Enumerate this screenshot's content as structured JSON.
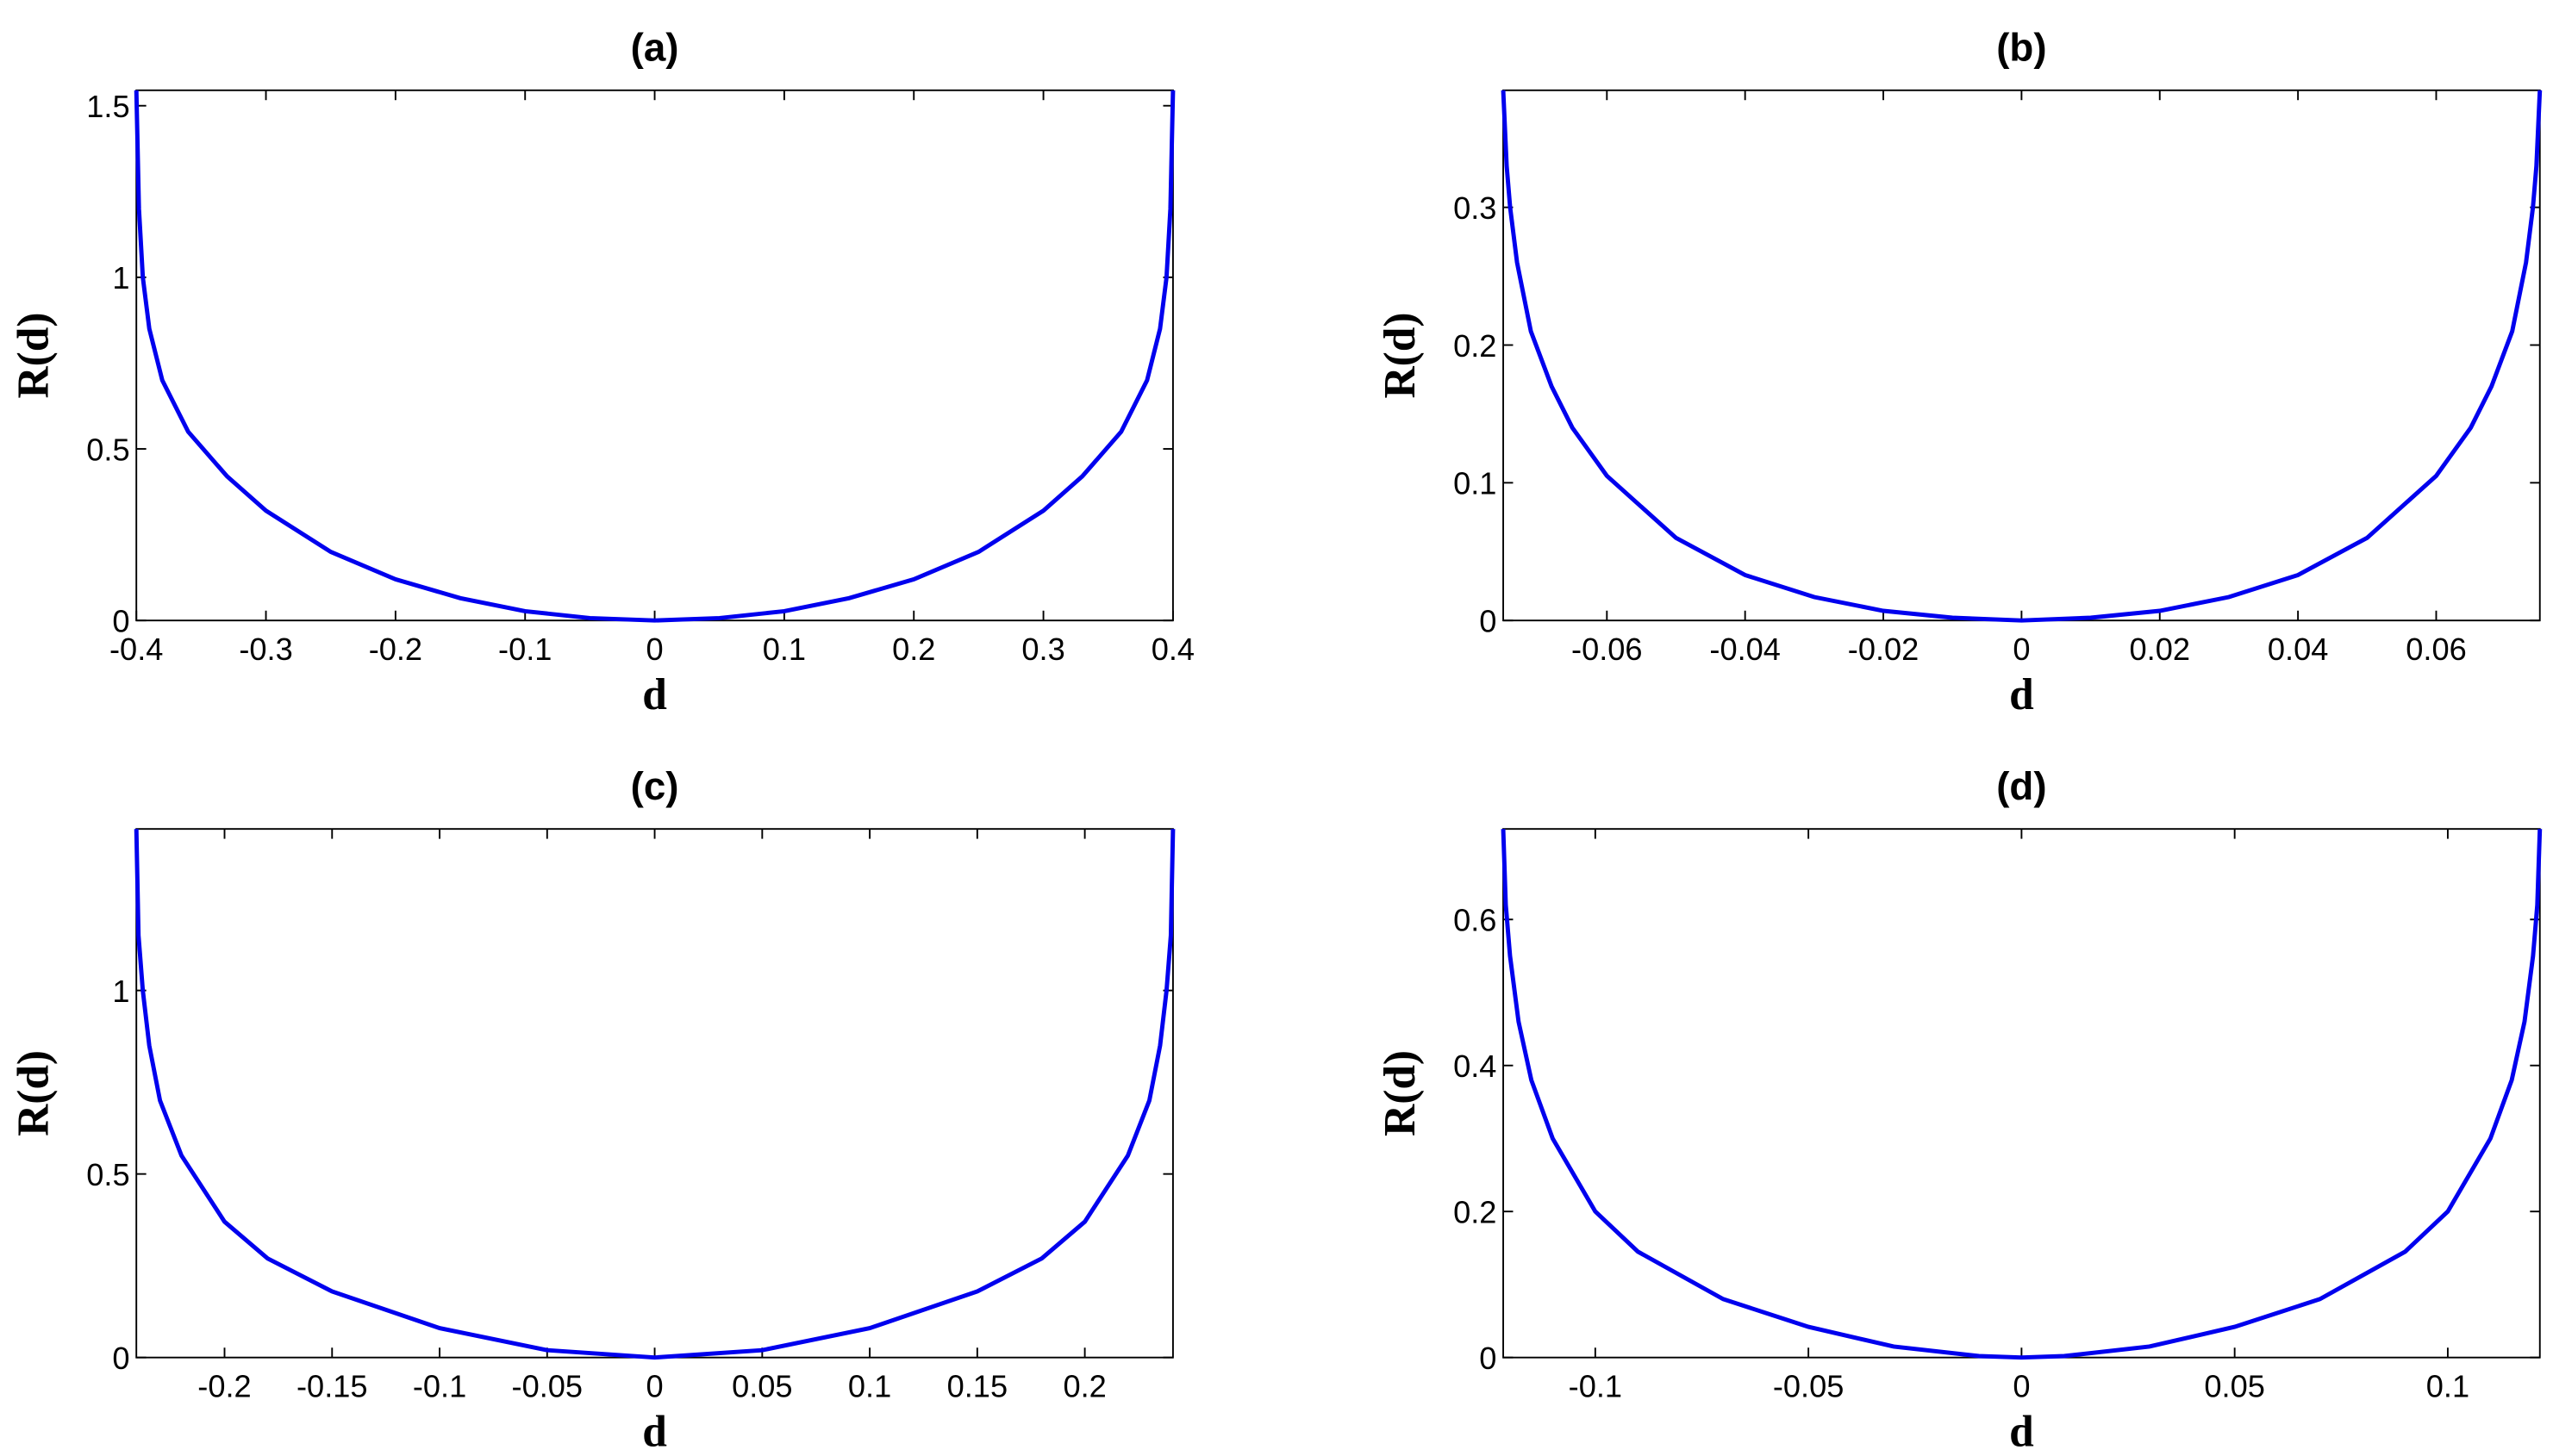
{
  "chart_data": [
    {
      "type": "line",
      "title": "(a)",
      "xlabel": "d",
      "ylabel": "R(d)",
      "color": "#0000ee",
      "x": [
        -0.4,
        -0.398,
        -0.395,
        -0.39,
        -0.38,
        -0.36,
        -0.33,
        -0.3,
        -0.25,
        -0.2,
        -0.15,
        -0.1,
        -0.05,
        0,
        0.05,
        0.1,
        0.15,
        0.2,
        0.25,
        0.3,
        0.33,
        0.36,
        0.38,
        0.39,
        0.395,
        0.398,
        0.4
      ],
      "values": [
        1.545,
        1.2,
        1.0,
        0.85,
        0.7,
        0.55,
        0.42,
        0.32,
        0.2,
        0.12,
        0.065,
        0.027,
        0.007,
        0,
        0.007,
        0.027,
        0.065,
        0.12,
        0.2,
        0.32,
        0.42,
        0.55,
        0.7,
        0.85,
        1.0,
        1.2,
        1.545
      ],
      "xlim": [
        -0.4,
        0.4
      ],
      "ylim": [
        0,
        1.545
      ],
      "xticks": [
        -0.4,
        -0.3,
        -0.2,
        -0.1,
        0,
        0.1,
        0.2,
        0.3,
        0.4
      ],
      "yticks": [
        0,
        0.5,
        1,
        1.5
      ]
    },
    {
      "type": "line",
      "title": "(b)",
      "xlabel": "d",
      "ylabel": "R(d)",
      "color": "#0000ee",
      "x": [
        -0.075,
        -0.0745,
        -0.074,
        -0.073,
        -0.071,
        -0.068,
        -0.065,
        -0.06,
        -0.05,
        -0.04,
        -0.03,
        -0.02,
        -0.01,
        0,
        0.01,
        0.02,
        0.03,
        0.04,
        0.05,
        0.06,
        0.065,
        0.068,
        0.071,
        0.073,
        0.074,
        0.0745,
        0.075
      ],
      "values": [
        0.385,
        0.33,
        0.3,
        0.26,
        0.21,
        0.17,
        0.14,
        0.105,
        0.06,
        0.033,
        0.017,
        0.007,
        0.002,
        0,
        0.002,
        0.007,
        0.017,
        0.033,
        0.06,
        0.105,
        0.14,
        0.17,
        0.21,
        0.26,
        0.3,
        0.33,
        0.385
      ],
      "xlim": [
        -0.075,
        0.075
      ],
      "ylim": [
        0,
        0.385
      ],
      "xticks": [
        -0.06,
        -0.04,
        -0.02,
        0,
        0.02,
        0.04,
        0.06
      ],
      "yticks": [
        0,
        0.1,
        0.2,
        0.3
      ]
    },
    {
      "type": "line",
      "title": "(c)",
      "xlabel": "d",
      "ylabel": "R(d)",
      "color": "#0000ee",
      "x": [
        -0.241,
        -0.24,
        -0.238,
        -0.235,
        -0.23,
        -0.22,
        -0.2,
        -0.18,
        -0.15,
        -0.1,
        -0.05,
        0,
        0.05,
        0.1,
        0.15,
        0.18,
        0.2,
        0.22,
        0.23,
        0.235,
        0.238,
        0.24,
        0.241
      ],
      "values": [
        1.44,
        1.15,
        1.0,
        0.85,
        0.7,
        0.55,
        0.37,
        0.27,
        0.18,
        0.08,
        0.02,
        0,
        0.02,
        0.08,
        0.18,
        0.27,
        0.37,
        0.55,
        0.7,
        0.85,
        1.0,
        1.15,
        1.44
      ],
      "xlim": [
        -0.241,
        0.241
      ],
      "ylim": [
        0,
        1.44
      ],
      "xticks": [
        -0.2,
        -0.15,
        -0.1,
        -0.05,
        0,
        0.05,
        0.1,
        0.15,
        0.2
      ],
      "yticks": [
        0,
        0.5,
        1
      ]
    },
    {
      "type": "line",
      "title": "(d)",
      "xlabel": "d",
      "ylabel": "R(d)",
      "color": "#0000ee",
      "x": [
        -0.1216,
        -0.121,
        -0.12,
        -0.118,
        -0.115,
        -0.11,
        -0.1,
        -0.09,
        -0.07,
        -0.05,
        -0.03,
        -0.01,
        0,
        0.01,
        0.03,
        0.05,
        0.07,
        0.09,
        0.1,
        0.11,
        0.115,
        0.118,
        0.12,
        0.121,
        0.1216
      ],
      "values": [
        0.724,
        0.62,
        0.55,
        0.46,
        0.38,
        0.3,
        0.2,
        0.145,
        0.08,
        0.042,
        0.015,
        0.002,
        0,
        0.002,
        0.015,
        0.042,
        0.08,
        0.145,
        0.2,
        0.3,
        0.38,
        0.46,
        0.55,
        0.62,
        0.724
      ],
      "xlim": [
        -0.1216,
        0.1216
      ],
      "ylim": [
        0,
        0.724
      ],
      "xticks": [
        -0.1,
        -0.05,
        0,
        0.05,
        0.1
      ],
      "yticks": [
        0,
        0.2,
        0.4,
        0.6
      ]
    }
  ]
}
